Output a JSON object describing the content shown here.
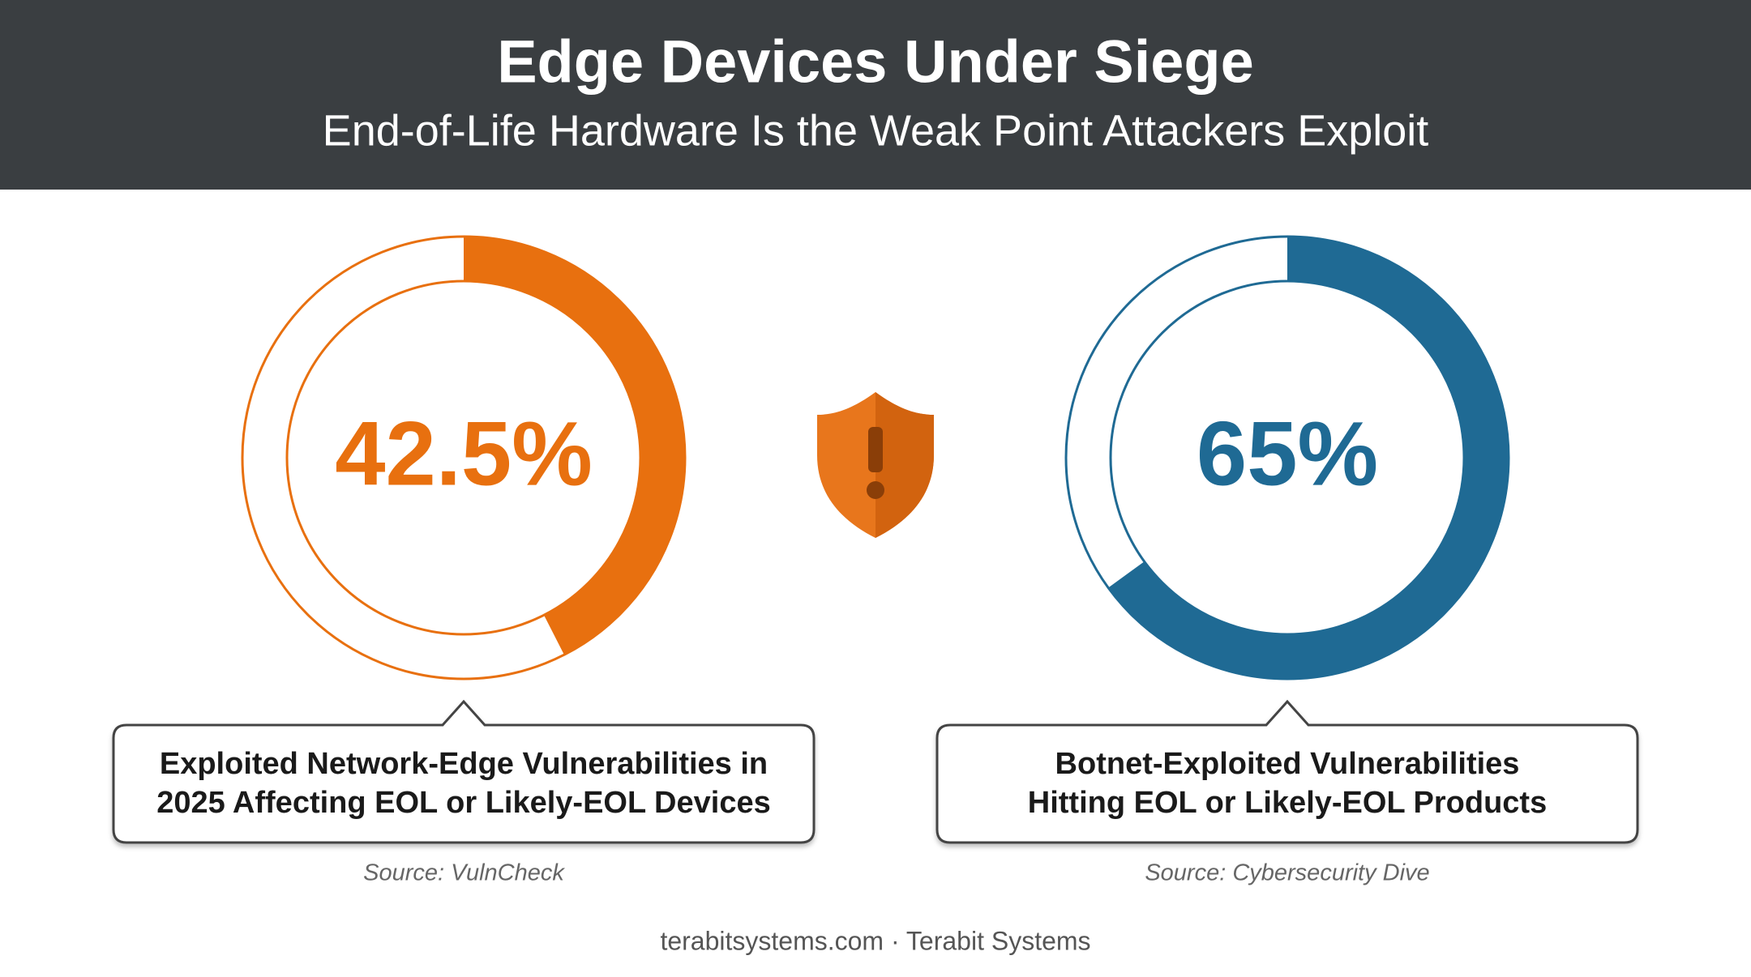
{
  "header": {
    "title": "Edge Devices Under Siege",
    "subtitle": "End-of-Life Hardware Is the Weak Point Attackers Exploit"
  },
  "chart_data": [
    {
      "type": "donut",
      "value": 42.5,
      "value_label": "42.5%",
      "color": "#e8700f",
      "label_lines": [
        "Exploited Network-Edge Vulnerabilities in",
        "2025 Affecting EOL or Likely-EOL Devices"
      ],
      "source": "Source: VulnCheck"
    },
    {
      "type": "donut",
      "value": 65,
      "value_label": "65%",
      "color": "#1f6a94",
      "label_lines": [
        "Botnet-Exploited Vulnerabilities",
        "Hitting EOL or Likely-EOL Products"
      ],
      "source": "Source: Cybersecurity Dive"
    }
  ],
  "footer": "terabitsystems.com · Terabit Systems"
}
